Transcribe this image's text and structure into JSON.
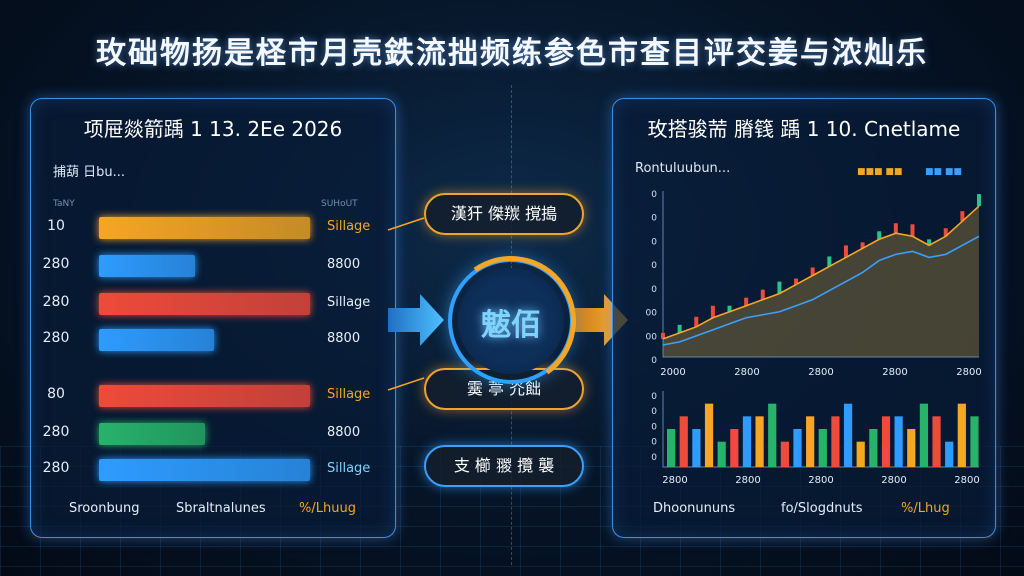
{
  "header": {
    "title": "玫础物扬是柽市月壳鉄流拙频练参色市查目评交姜与浓灿乐"
  },
  "left_panel": {
    "title": "项屉燚箭踽 1 13. 2Ee 2026",
    "sub_label": "捕葫 日bu...",
    "tiny_labels": [
      "TaNY",
      "SUHoUT"
    ],
    "rows": [
      {
        "value": "10",
        "fill": 0.88,
        "color": "#f5a623",
        "tag": "Sillage",
        "tag_color": "#f5a623"
      },
      {
        "value": "280",
        "fill": 0.4,
        "color": "#2e9cff",
        "tag": "8800",
        "tag_color": "#e6eefa"
      },
      {
        "value": "280",
        "fill": 0.88,
        "color": "#ef4a3a",
        "tag": "Sillage",
        "tag_color": "#e6eefa"
      },
      {
        "value": "280",
        "fill": 0.48,
        "color": "#2e9cff",
        "tag": "8800",
        "tag_color": "#e6eefa"
      },
      {
        "value": "80",
        "fill": 0.88,
        "color": "#ef4a3a",
        "tag": "Sillage",
        "tag_color": "#f5a623"
      },
      {
        "value": "280",
        "fill": 0.44,
        "color": "#27b36a",
        "tag": "8800",
        "tag_color": "#e6eefa"
      },
      {
        "value": "280",
        "fill": 0.88,
        "color": "#2e9cff",
        "tag": "Sillage",
        "tag_color": "#7fd4ff"
      }
    ],
    "footer": [
      "Sroonbung",
      "Sbraltnalunes",
      "%/Lhuug"
    ]
  },
  "center": {
    "pills": [
      "漢犴 傑羰 撹搗",
      "霙 葶 灮飿",
      "支 櫛 翪 攬 襲"
    ],
    "hub_label": "魃佰"
  },
  "right_panel": {
    "title": "玫搭骏荋 膌篯 踽 1 10. Cnetlame",
    "sub_label": "Rontuluubun...",
    "legend": [
      "■■■ ■■",
      "■■ ■■"
    ],
    "line_yticks": [
      "0",
      "0",
      "0",
      "0",
      "0",
      "00",
      "00",
      "0"
    ],
    "line_xticks": [
      "2000",
      "2800",
      "2800",
      "2800",
      "2800"
    ],
    "bar_yticks": [
      "0",
      "0",
      "0",
      "0",
      "0"
    ],
    "bar_xticks": [
      "2800",
      "2800",
      "2800",
      "2800",
      "2800"
    ],
    "footer": [
      "Dhoonununs",
      "fo/Slogdnuts",
      "%/Lhug"
    ]
  },
  "chart_data": [
    {
      "type": "line",
      "x": [
        1,
        2,
        3,
        4,
        5,
        6,
        7,
        8,
        9,
        10,
        11,
        12,
        13,
        14,
        15,
        16,
        17,
        18,
        19,
        20
      ],
      "series": [
        {
          "values": [
            6,
            8,
            10,
            13,
            15,
            17,
            19,
            21,
            24,
            27,
            30,
            33,
            36,
            39,
            41,
            40,
            37,
            40,
            45,
            50
          ]
        },
        {
          "values": [
            4,
            5,
            7,
            9,
            11,
            13,
            14,
            15,
            17,
            19,
            22,
            25,
            28,
            32,
            34,
            35,
            33,
            34,
            37,
            40
          ]
        }
      ],
      "ylim": [
        0,
        55
      ]
    },
    {
      "type": "bar",
      "x": [
        1,
        2,
        3,
        4,
        5,
        6,
        7,
        8,
        9,
        10,
        11,
        12,
        13,
        14,
        15,
        16,
        17,
        18,
        19,
        20,
        21,
        22,
        23,
        24,
        25
      ],
      "values": [
        3,
        4,
        3,
        5,
        2,
        3,
        4,
        4,
        5,
        2,
        3,
        4,
        3,
        4,
        5,
        2,
        3,
        4,
        4,
        3,
        5,
        4,
        2,
        5,
        4
      ],
      "ylim": [
        0,
        6
      ]
    }
  ],
  "colors": {
    "orange": "#f5a623",
    "blue": "#2e9cff",
    "red": "#ef4a3a",
    "green": "#27b36a"
  },
  "icons": {
    "arrow_left": "arrow-right-icon",
    "arrow_right": "arrow-right-icon"
  }
}
